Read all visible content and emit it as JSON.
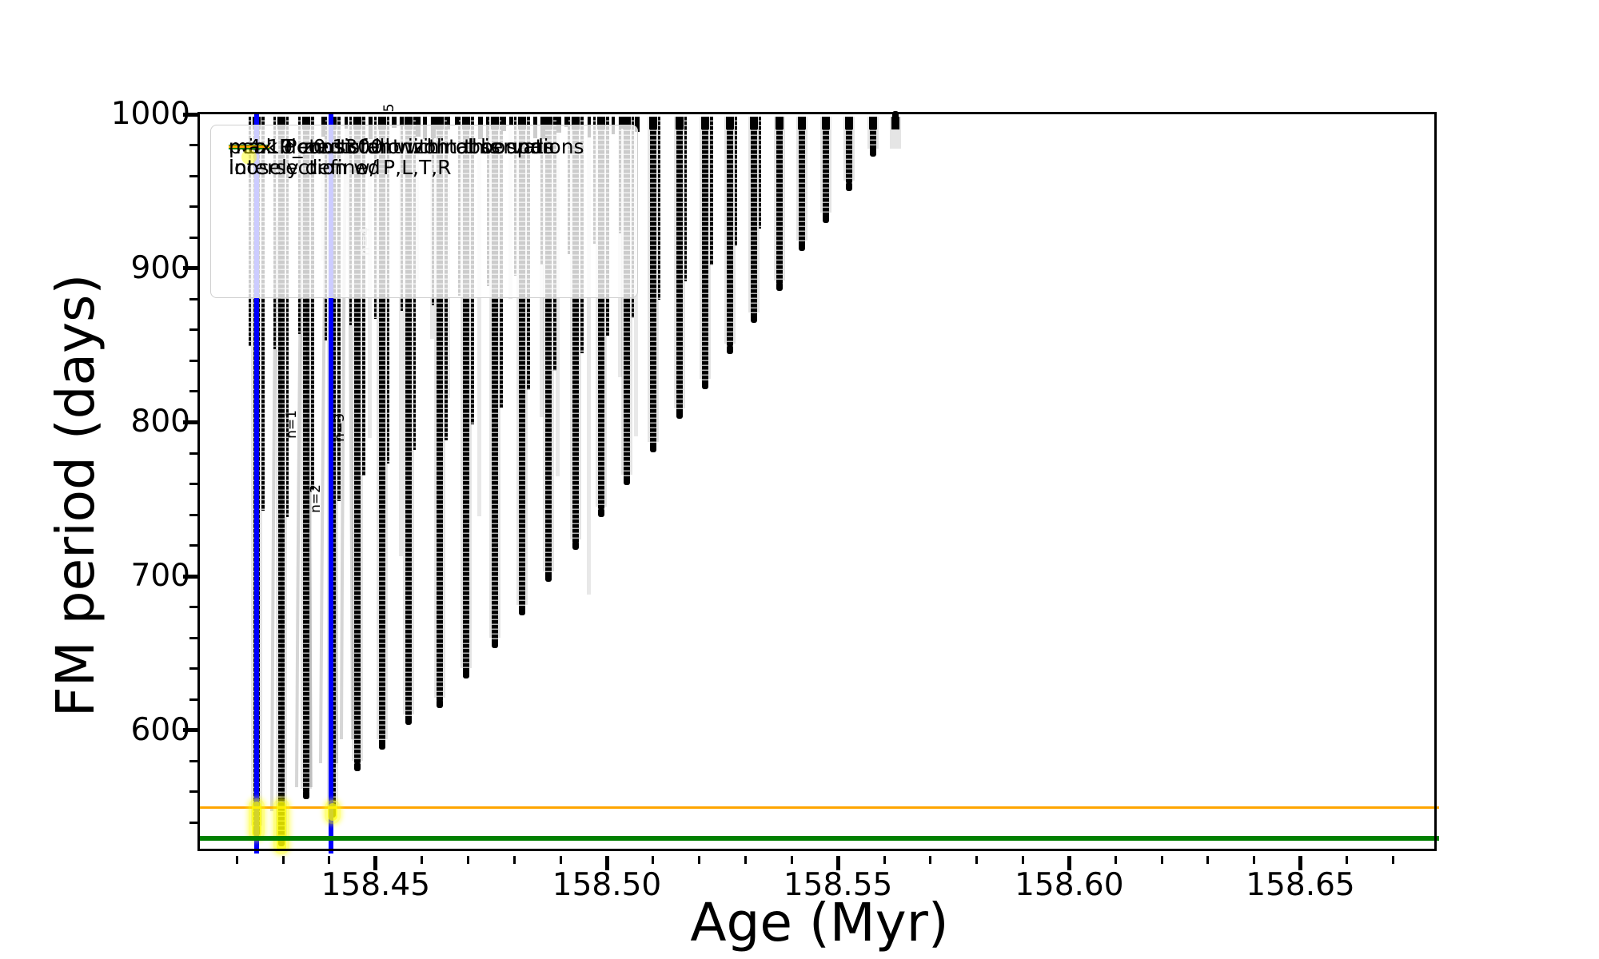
{
  "figure": {
    "type": "matplotlib-style scientific plot",
    "background": "#ffffff"
  },
  "legend": {
    "items": [
      {
        "label": "m4.10_z0.1300",
        "sample": "line-dot",
        "color": "#000000"
      },
      {
        "label": "peak detector horizontal bounds",
        "sample": "thick-line",
        "color": "#0000ff"
      },
      {
        "label": "min. P consistent with observations",
        "sample": "thick-line",
        "color": "#008000"
      },
      {
        "label": "max. P must fall within this span",
        "sample": "thin-line",
        "color": "#ffa500"
      },
      {
        "label_lines": [
          "intersection w/ P,L,T,R",
          "loosely defined"
        ],
        "sample": "circle",
        "color": "rgba(255,255,0,0.45)"
      }
    ]
  },
  "chart_data": {
    "type": "line",
    "title": "",
    "xlabel": "Age (Myr)",
    "ylabel": "FM period (days)",
    "xlim": [
      158.412,
      158.68
    ],
    "ylim": [
      520,
      1000
    ],
    "grid": false,
    "x_major_ticks": [
      158.45,
      158.5,
      158.55,
      158.6,
      158.65
    ],
    "x_major_tick_labels": [
      "158.45",
      "158.50",
      "158.55",
      "158.60",
      "158.65"
    ],
    "x_minor_step": 0.01,
    "y_major_ticks": [
      1000,
      900,
      800,
      700,
      600
    ],
    "y_major_tick_labels": [
      "1000",
      "900",
      "800",
      "700",
      "600"
    ],
    "y_minor_step": 20,
    "series": [
      {
        "name": "m4.10_z0.1300",
        "color": "#000000",
        "style": "densely sampled oscillating curve; narrow V-shaped dips (black dot markers, faint grey connecting line); tops clipped at P=1000",
        "top_comb_age_range": [
          158.438,
          158.505
        ],
        "spike_minima": [
          [
            158.4243,
            533
          ],
          [
            158.4296,
            526
          ],
          [
            158.435,
            557
          ],
          [
            158.4407,
            545
          ],
          [
            158.4461,
            575
          ],
          [
            158.4514,
            589
          ],
          [
            158.4571,
            605
          ],
          [
            158.4639,
            616
          ],
          [
            158.4696,
            635
          ],
          [
            158.4758,
            655
          ],
          [
            158.4817,
            676
          ],
          [
            158.4874,
            698
          ],
          [
            158.4933,
            719
          ],
          [
            158.4988,
            740
          ],
          [
            158.5043,
            761
          ],
          [
            158.51,
            782
          ],
          [
            158.5157,
            804
          ],
          [
            158.5213,
            823
          ],
          [
            158.5266,
            846
          ],
          [
            158.5318,
            866
          ],
          [
            158.5374,
            887
          ],
          [
            158.5422,
            913
          ],
          [
            158.5474,
            931
          ],
          [
            158.5524,
            952
          ],
          [
            158.5576,
            974
          ],
          [
            158.5624,
            998
          ]
        ]
      }
    ],
    "vlines": {
      "label": "peak detector horizontal bounds",
      "color": "#0000ff",
      "ages": [
        158.4243,
        158.4404
      ]
    },
    "hlines": [
      {
        "label": "min. P consistent with observations",
        "color": "#008000",
        "period": 530,
        "linewidth": 6
      },
      {
        "label": "max. P must fall within this span",
        "color": "#ffa500",
        "period": 550,
        "linewidth": 3
      }
    ],
    "scatter": {
      "label": "intersection w/ P,L,T,R loosely defined",
      "color": "rgba(255,255,0,0.5)",
      "clusters": [
        {
          "age": 158.4243,
          "period_range": [
            533,
            551
          ]
        },
        {
          "age": 158.4296,
          "period_range": [
            524,
            551
          ]
        },
        {
          "age": 158.4407,
          "period_range": [
            544,
            550
          ]
        }
      ]
    },
    "annotations": [
      {
        "text": "n=1",
        "age": 158.4319,
        "period": 799,
        "color": "#000000"
      },
      {
        "text": "n=2",
        "age": 158.4371,
        "period": 751,
        "color": "#000000"
      },
      {
        "text": "n=3",
        "age": 158.4423,
        "period": 797,
        "color": "#000000"
      },
      {
        "text": "n=4",
        "age": 158.4478,
        "period": 918,
        "color": "#c2c2c2"
      },
      {
        "text": "5",
        "age": 158.453,
        "period": 1002,
        "color": "#000000"
      }
    ]
  }
}
